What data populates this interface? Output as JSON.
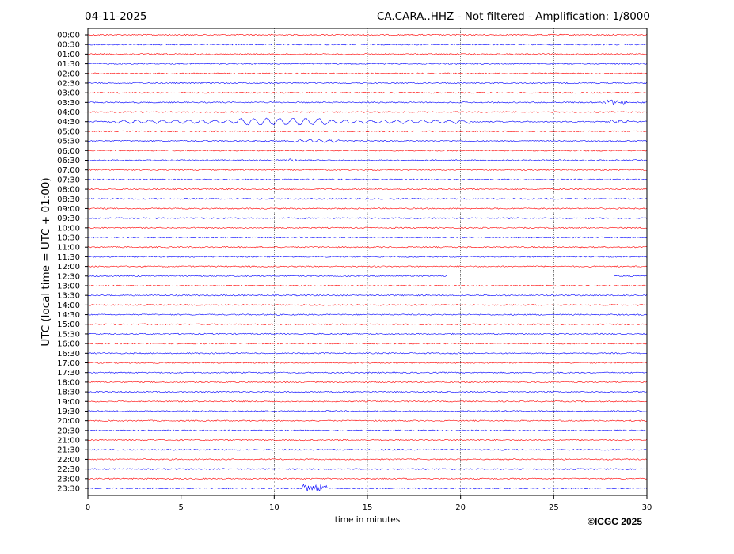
{
  "chart_data": {
    "type": "helicorder",
    "date": "04-11-2025",
    "title": "CA.CARA..HHZ - Not filtered - Amplification: 1/8000",
    "ylabel": "UTC (local time = UTC + 01:00)",
    "xlabel": "time in minutes",
    "categories": [
      "00:00",
      "00:30",
      "01:00",
      "01:30",
      "02:00",
      "02:30",
      "03:00",
      "03:30",
      "04:00",
      "04:30",
      "05:00",
      "05:30",
      "06:00",
      "06:30",
      "07:00",
      "07:30",
      "08:00",
      "08:30",
      "09:00",
      "09:30",
      "10:00",
      "10:30",
      "11:00",
      "11:30",
      "12:00",
      "12:30",
      "13:00",
      "13:30",
      "14:00",
      "14:30",
      "15:00",
      "15:30",
      "16:00",
      "16:30",
      "17:00",
      "17:30",
      "18:00",
      "18:30",
      "19:00",
      "19:30",
      "20:00",
      "20:30",
      "21:00",
      "21:30",
      "22:00",
      "22:30",
      "23:00",
      "23:30"
    ],
    "xlim": [
      0,
      30
    ],
    "xticks": [
      0,
      5,
      10,
      15,
      20,
      25,
      30
    ],
    "colors": [
      "#ff0000",
      "#0000ff"
    ],
    "grid": true
  },
  "credit": "©ICGC 2025"
}
